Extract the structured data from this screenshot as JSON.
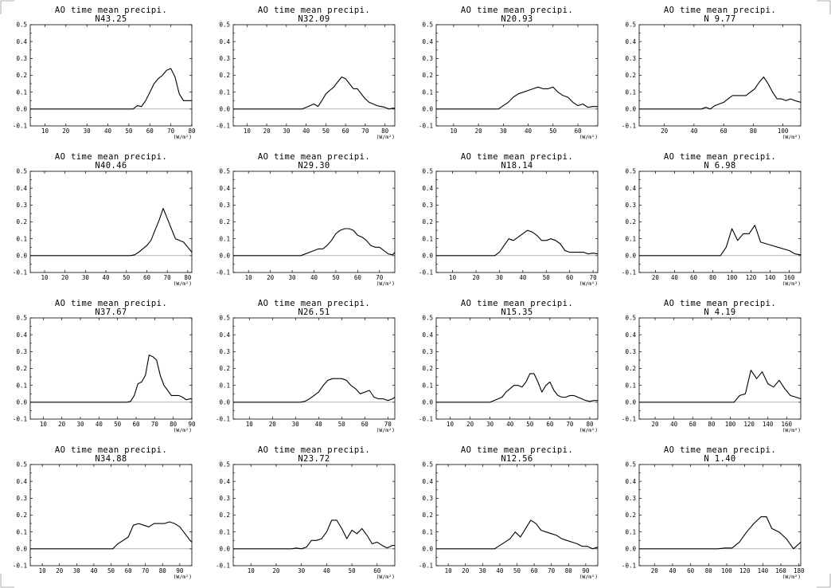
{
  "chart_data": [
    {
      "type": "line",
      "title": "AO time mean precipi.",
      "subtitle": "N43.25",
      "xlabel": "(W/m²)",
      "xlim": [
        3,
        80
      ],
      "ylim": [
        -0.1,
        0.5
      ],
      "x": [
        52,
        54,
        56,
        58,
        60,
        62,
        64,
        66,
        68,
        70,
        72,
        74,
        76,
        78,
        80
      ],
      "values": [
        0.0,
        0.02,
        0.015,
        0.05,
        0.1,
        0.15,
        0.18,
        0.2,
        0.23,
        0.24,
        0.19,
        0.09,
        0.05,
        0.05,
        0.05
      ]
    },
    {
      "type": "line",
      "title": "AO time mean precipi.",
      "subtitle": "N32.09",
      "xlabel": "(W/m²)",
      "xlim": [
        3,
        85
      ],
      "ylim": [
        -0.1,
        0.5
      ],
      "x": [
        38,
        40,
        42,
        44,
        46,
        48,
        50,
        52,
        54,
        56,
        58,
        60,
        62,
        64,
        66,
        68,
        70,
        72,
        74,
        76,
        78,
        80,
        82,
        84,
        85
      ],
      "values": [
        0.0,
        0.01,
        0.02,
        0.03,
        0.015,
        0.05,
        0.09,
        0.11,
        0.13,
        0.16,
        0.19,
        0.18,
        0.15,
        0.12,
        0.12,
        0.09,
        0.06,
        0.04,
        0.03,
        0.02,
        0.015,
        0.01,
        0.0,
        0.005,
        0.005
      ]
    },
    {
      "type": "line",
      "title": "AO time mean precipi.",
      "subtitle": "N20.93",
      "xlabel": "(W/m²)",
      "xlim": [
        3,
        68
      ],
      "ylim": [
        -0.1,
        0.5
      ],
      "x": [
        28,
        30,
        32,
        34,
        36,
        38,
        40,
        42,
        44,
        46,
        48,
        50,
        52,
        54,
        56,
        58,
        60,
        62,
        64,
        66,
        68
      ],
      "values": [
        0.0,
        0.02,
        0.04,
        0.07,
        0.09,
        0.1,
        0.11,
        0.12,
        0.13,
        0.12,
        0.12,
        0.13,
        0.1,
        0.08,
        0.07,
        0.04,
        0.02,
        0.03,
        0.01,
        0.015,
        0.015
      ]
    },
    {
      "type": "line",
      "title": "AO time mean precipi.",
      "subtitle": "N 9.77",
      "xlabel": "(W/m²)",
      "xlim": [
        3,
        112
      ],
      "ylim": [
        -0.1,
        0.5
      ],
      "x": [
        45,
        48,
        51,
        54,
        57,
        60,
        63,
        66,
        69,
        72,
        75,
        78,
        81,
        84,
        87,
        90,
        93,
        96,
        99,
        102,
        105,
        108,
        112
      ],
      "values": [
        0.0,
        0.01,
        0.0,
        0.02,
        0.03,
        0.04,
        0.06,
        0.08,
        0.08,
        0.08,
        0.08,
        0.1,
        0.12,
        0.16,
        0.19,
        0.15,
        0.1,
        0.06,
        0.06,
        0.05,
        0.06,
        0.05,
        0.04
      ]
    },
    {
      "type": "line",
      "title": "AO time mean precipi.",
      "subtitle": "N40.46",
      "xlabel": "(W/m²)",
      "xlim": [
        3,
        82
      ],
      "ylim": [
        -0.1,
        0.5
      ],
      "x": [
        52,
        54,
        56,
        58,
        60,
        62,
        64,
        66,
        68,
        70,
        72,
        74,
        76,
        78,
        80,
        82
      ],
      "values": [
        0.0,
        0.005,
        0.02,
        0.04,
        0.06,
        0.09,
        0.15,
        0.21,
        0.28,
        0.22,
        0.16,
        0.1,
        0.09,
        0.08,
        0.05,
        0.02
      ]
    },
    {
      "type": "line",
      "title": "AO time mean precipi.",
      "subtitle": "N29.30",
      "xlabel": "(W/m²)",
      "xlim": [
        3,
        77
      ],
      "ylim": [
        -0.1,
        0.5
      ],
      "x": [
        34,
        36,
        38,
        40,
        42,
        44,
        46,
        48,
        50,
        52,
        54,
        56,
        58,
        60,
        62,
        64,
        66,
        68,
        70,
        72,
        74,
        76,
        77
      ],
      "values": [
        0.0,
        0.01,
        0.02,
        0.03,
        0.04,
        0.04,
        0.06,
        0.09,
        0.13,
        0.15,
        0.16,
        0.16,
        0.15,
        0.12,
        0.11,
        0.09,
        0.06,
        0.05,
        0.05,
        0.03,
        0.01,
        0.005,
        0.02
      ]
    },
    {
      "type": "line",
      "title": "AO time mean precipi.",
      "subtitle": "N18.14",
      "xlabel": "(W/m²)",
      "xlim": [
        3,
        72
      ],
      "ylim": [
        -0.1,
        0.5
      ],
      "x": [
        28,
        30,
        32,
        34,
        36,
        38,
        40,
        42,
        44,
        46,
        48,
        50,
        52,
        54,
        56,
        58,
        60,
        62,
        64,
        66,
        68,
        70,
        72
      ],
      "values": [
        0.0,
        0.02,
        0.06,
        0.1,
        0.09,
        0.11,
        0.13,
        0.15,
        0.14,
        0.12,
        0.09,
        0.09,
        0.1,
        0.09,
        0.07,
        0.03,
        0.02,
        0.02,
        0.02,
        0.02,
        0.01,
        0.015,
        0.01
      ]
    },
    {
      "type": "line",
      "title": "AO time mean precipi.",
      "subtitle": "N 6.98",
      "xlabel": "(W/m²)",
      "xlim": [
        3,
        172
      ],
      "ylim": [
        -0.1,
        0.5
      ],
      "x": [
        88,
        94,
        100,
        106,
        112,
        118,
        124,
        130,
        136,
        142,
        148,
        154,
        160,
        166,
        172
      ],
      "values": [
        0.0,
        0.05,
        0.16,
        0.09,
        0.13,
        0.13,
        0.18,
        0.08,
        0.07,
        0.06,
        0.05,
        0.04,
        0.03,
        0.01,
        0.005
      ]
    },
    {
      "type": "line",
      "title": "AO time mean precipi.",
      "subtitle": "N37.67",
      "xlabel": "(W/m²)",
      "xlim": [
        3,
        90
      ],
      "ylim": [
        -0.1,
        0.5
      ],
      "x": [
        55,
        57,
        59,
        61,
        63,
        65,
        67,
        69,
        71,
        73,
        75,
        77,
        79,
        81,
        83,
        85,
        87,
        89,
        90
      ],
      "values": [
        0.0,
        0.005,
        0.04,
        0.11,
        0.12,
        0.16,
        0.28,
        0.27,
        0.25,
        0.16,
        0.1,
        0.07,
        0.04,
        0.04,
        0.04,
        0.03,
        0.015,
        0.02,
        0.02
      ]
    },
    {
      "type": "line",
      "title": "AO time mean precipi.",
      "subtitle": "N26.51",
      "xlabel": "(W/m²)",
      "xlim": [
        3,
        73
      ],
      "ylim": [
        -0.1,
        0.5
      ],
      "x": [
        32,
        34,
        36,
        38,
        40,
        42,
        44,
        46,
        48,
        50,
        52,
        54,
        56,
        58,
        60,
        62,
        64,
        66,
        68,
        70,
        72,
        73
      ],
      "values": [
        0.0,
        0.005,
        0.02,
        0.04,
        0.06,
        0.1,
        0.13,
        0.14,
        0.14,
        0.14,
        0.13,
        0.1,
        0.08,
        0.05,
        0.06,
        0.07,
        0.03,
        0.02,
        0.02,
        0.01,
        0.02,
        0.03
      ]
    },
    {
      "type": "line",
      "title": "AO time mean precipi.",
      "subtitle": "N15.35",
      "xlabel": "(W/m²)",
      "xlim": [
        3,
        84
      ],
      "ylim": [
        -0.1,
        0.5
      ],
      "x": [
        30,
        32,
        34,
        36,
        38,
        40,
        42,
        44,
        46,
        48,
        50,
        52,
        54,
        56,
        58,
        60,
        62,
        64,
        66,
        68,
        70,
        72,
        74,
        76,
        78,
        80,
        82,
        84
      ],
      "values": [
        0.0,
        0.01,
        0.02,
        0.03,
        0.06,
        0.08,
        0.1,
        0.1,
        0.09,
        0.12,
        0.17,
        0.17,
        0.12,
        0.06,
        0.1,
        0.12,
        0.07,
        0.04,
        0.03,
        0.03,
        0.04,
        0.04,
        0.03,
        0.02,
        0.01,
        0.005,
        0.01,
        0.01
      ]
    },
    {
      "type": "line",
      "title": "AO time mean precipi.",
      "subtitle": "N 4.19",
      "xlabel": "(W/m²)",
      "xlim": [
        3,
        175
      ],
      "ylim": [
        -0.1,
        0.5
      ],
      "x": [
        104,
        110,
        116,
        122,
        128,
        134,
        140,
        146,
        152,
        158,
        164,
        170,
        175
      ],
      "values": [
        0.0,
        0.04,
        0.05,
        0.19,
        0.14,
        0.18,
        0.11,
        0.09,
        0.13,
        0.08,
        0.04,
        0.03,
        0.02
      ]
    },
    {
      "type": "line",
      "title": "AO time mean precipi.",
      "subtitle": "N34.88",
      "xlabel": "(W/m²)",
      "xlim": [
        3,
        97
      ],
      "ylim": [
        -0.1,
        0.5
      ],
      "x": [
        51,
        54,
        57,
        60,
        63,
        66,
        69,
        72,
        75,
        78,
        81,
        84,
        87,
        90,
        93,
        96,
        97
      ],
      "values": [
        0.0,
        0.03,
        0.05,
        0.07,
        0.14,
        0.15,
        0.14,
        0.13,
        0.15,
        0.15,
        0.15,
        0.16,
        0.15,
        0.13,
        0.09,
        0.05,
        0.04
      ]
    },
    {
      "type": "line",
      "title": "AO time mean precipi.",
      "subtitle": "N23.72",
      "xlabel": "(W/m²)",
      "xlim": [
        3,
        67
      ],
      "ylim": [
        -0.1,
        0.5
      ],
      "x": [
        26,
        28,
        30,
        32,
        34,
        36,
        38,
        40,
        42,
        44,
        46,
        48,
        50,
        52,
        54,
        56,
        58,
        60,
        62,
        64,
        66,
        67
      ],
      "values": [
        0.0,
        0.005,
        0.0,
        0.01,
        0.05,
        0.05,
        0.06,
        0.1,
        0.17,
        0.17,
        0.12,
        0.06,
        0.11,
        0.09,
        0.12,
        0.08,
        0.03,
        0.04,
        0.02,
        0.005,
        0.02,
        0.02
      ]
    },
    {
      "type": "line",
      "title": "AO time mean precipi.",
      "subtitle": "N12.56",
      "xlabel": "(W/m²)",
      "xlim": [
        3,
        97
      ],
      "ylim": [
        -0.1,
        0.5
      ],
      "x": [
        37,
        40,
        43,
        46,
        49,
        52,
        55,
        58,
        61,
        64,
        67,
        70,
        73,
        76,
        79,
        82,
        85,
        88,
        91,
        94,
        97
      ],
      "values": [
        0.0,
        0.02,
        0.04,
        0.06,
        0.1,
        0.07,
        0.12,
        0.17,
        0.15,
        0.11,
        0.1,
        0.09,
        0.08,
        0.06,
        0.05,
        0.04,
        0.03,
        0.015,
        0.015,
        0.0,
        0.01
      ]
    },
    {
      "type": "line",
      "title": "AO time mean precipi.",
      "subtitle": "N 1.40",
      "xlabel": "(W/m²)",
      "xlim": [
        3,
        182
      ],
      "ylim": [
        -0.1,
        0.5
      ],
      "x": [
        90,
        98,
        106,
        114,
        122,
        130,
        138,
        144,
        150,
        158,
        166,
        174,
        182
      ],
      "values": [
        0.0,
        0.005,
        0.005,
        0.04,
        0.1,
        0.15,
        0.19,
        0.19,
        0.12,
        0.1,
        0.06,
        0.0,
        0.04
      ]
    }
  ],
  "x_ticks": [
    [
      10,
      20,
      30,
      40,
      50,
      60,
      70,
      80
    ],
    [
      10,
      20,
      30,
      40,
      50,
      60,
      70,
      80
    ],
    [
      10,
      20,
      30,
      40,
      50,
      60
    ],
    [
      20,
      40,
      60,
      80,
      100
    ],
    [
      10,
      20,
      30,
      40,
      50,
      60,
      70,
      80
    ],
    [
      10,
      20,
      30,
      40,
      50,
      60,
      70
    ],
    [
      10,
      20,
      30,
      40,
      50,
      60,
      70
    ],
    [
      20,
      40,
      60,
      80,
      100,
      120,
      140,
      160
    ],
    [
      10,
      20,
      30,
      40,
      50,
      60,
      70,
      80,
      90
    ],
    [
      10,
      20,
      30,
      40,
      50,
      60,
      70
    ],
    [
      10,
      20,
      30,
      40,
      50,
      60,
      70,
      80
    ],
    [
      20,
      40,
      60,
      80,
      100,
      120,
      140,
      160
    ],
    [
      10,
      20,
      30,
      40,
      50,
      60,
      70,
      80,
      90
    ],
    [
      10,
      20,
      30,
      40,
      50,
      60
    ],
    [
      10,
      20,
      30,
      40,
      50,
      60,
      70,
      80,
      90
    ],
    [
      20,
      40,
      60,
      80,
      100,
      120,
      140,
      160,
      180
    ]
  ],
  "y_ticks": [
    -0.1,
    0.0,
    0.1,
    0.2,
    0.3,
    0.4,
    0.5
  ],
  "y_tick_labels": [
    "-0.1",
    "0.0",
    "0.1",
    "0.2",
    "0.3",
    "0.4",
    "0.5"
  ]
}
